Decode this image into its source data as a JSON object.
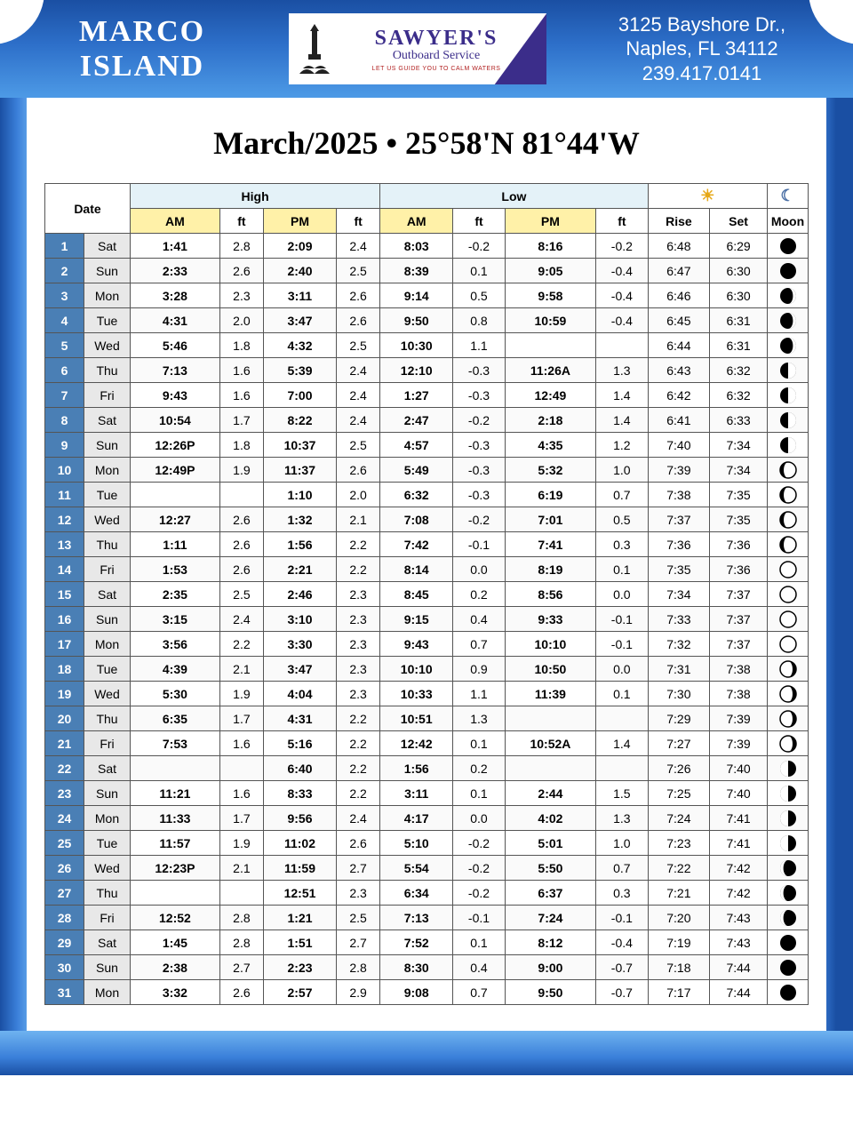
{
  "header": {
    "location": "MARCO\nISLAND",
    "sponsor": {
      "name": "SAWYER'S",
      "sub": "Outboard Service",
      "tag": "LET US GUIDE YOU TO CALM WATERS"
    },
    "address": {
      "line1": "3125 Bayshore Dr.,",
      "line2": "Naples, FL 34112",
      "phone": "239.417.0141"
    }
  },
  "title": "March/2025 • 25°58'N 81°44'W",
  "table": {
    "group_headers": {
      "date": "Date",
      "high": "High",
      "low": "Low",
      "sun": "☀",
      "moon": "☾"
    },
    "sub_headers": {
      "am": "AM",
      "ft": "ft",
      "pm": "PM",
      "rise": "Rise",
      "set": "Set",
      "moon": "Moon"
    },
    "col_styles": {
      "day_num_bg": "#4a7fb5",
      "day_num_color": "#ffffff",
      "yellow_bg": "#fff1a8",
      "group_bg": "#e4f2f8",
      "border_color": "#555555"
    },
    "moon_phases": {
      "new": {
        "fill": "full-black"
      },
      "wax_cres": {
        "fill": "right-sliver-white"
      },
      "first_q": {
        "fill": "right-half-white"
      },
      "wax_gib": {
        "fill": "right-most-white"
      },
      "full": {
        "fill": "white-outline"
      },
      "wan_gib": {
        "fill": "left-most-white"
      },
      "last_q": {
        "fill": "left-half-white"
      },
      "wan_cres": {
        "fill": "left-sliver-white"
      }
    },
    "rows": [
      {
        "d": 1,
        "dow": "Sat",
        "ham": "1:41",
        "hamft": "2.8",
        "hpm": "2:09",
        "hpmft": "2.4",
        "lam": "8:03",
        "lamft": "-0.2",
        "lpm": "8:16",
        "lpmft": "-0.2",
        "rise": "6:48",
        "set": "6:29",
        "moon": "new"
      },
      {
        "d": 2,
        "dow": "Sun",
        "ham": "2:33",
        "hamft": "2.6",
        "hpm": "2:40",
        "hpmft": "2.5",
        "lam": "8:39",
        "lamft": "0.1",
        "lpm": "9:05",
        "lpmft": "-0.4",
        "rise": "6:47",
        "set": "6:30",
        "moon": "new"
      },
      {
        "d": 3,
        "dow": "Mon",
        "ham": "3:28",
        "hamft": "2.3",
        "hpm": "3:11",
        "hpmft": "2.6",
        "lam": "9:14",
        "lamft": "0.5",
        "lpm": "9:58",
        "lpmft": "-0.4",
        "rise": "6:46",
        "set": "6:30",
        "moon": "wax_cres"
      },
      {
        "d": 4,
        "dow": "Tue",
        "ham": "4:31",
        "hamft": "2.0",
        "hpm": "3:47",
        "hpmft": "2.6",
        "lam": "9:50",
        "lamft": "0.8",
        "lpm": "10:59",
        "lpmft": "-0.4",
        "rise": "6:45",
        "set": "6:31",
        "moon": "wax_cres"
      },
      {
        "d": 5,
        "dow": "Wed",
        "ham": "5:46",
        "hamft": "1.8",
        "hpm": "4:32",
        "hpmft": "2.5",
        "lam": "10:30",
        "lamft": "1.1",
        "lpm": "",
        "lpmft": "",
        "rise": "6:44",
        "set": "6:31",
        "moon": "wax_cres"
      },
      {
        "d": 6,
        "dow": "Thu",
        "ham": "7:13",
        "hamft": "1.6",
        "hpm": "5:39",
        "hpmft": "2.4",
        "lam": "12:10",
        "lamft": "-0.3",
        "lpm": "11:26A",
        "lpmft": "1.3",
        "rise": "6:43",
        "set": "6:32",
        "moon": "first_q"
      },
      {
        "d": 7,
        "dow": "Fri",
        "ham": "9:43",
        "hamft": "1.6",
        "hpm": "7:00",
        "hpmft": "2.4",
        "lam": "1:27",
        "lamft": "-0.3",
        "lpm": "12:49",
        "lpmft": "1.4",
        "rise": "6:42",
        "set": "6:32",
        "moon": "first_q"
      },
      {
        "d": 8,
        "dow": "Sat",
        "ham": "10:54",
        "hamft": "1.7",
        "hpm": "8:22",
        "hpmft": "2.4",
        "lam": "2:47",
        "lamft": "-0.2",
        "lpm": "2:18",
        "lpmft": "1.4",
        "rise": "6:41",
        "set": "6:33",
        "moon": "first_q"
      },
      {
        "d": 9,
        "dow": "Sun",
        "ham": "12:26P",
        "hamft": "1.8",
        "hpm": "10:37",
        "hpmft": "2.5",
        "lam": "4:57",
        "lamft": "-0.3",
        "lpm": "4:35",
        "lpmft": "1.2",
        "rise": "7:40",
        "set": "7:34",
        "moon": "first_q"
      },
      {
        "d": 10,
        "dow": "Mon",
        "ham": "12:49P",
        "hamft": "1.9",
        "hpm": "11:37",
        "hpmft": "2.6",
        "lam": "5:49",
        "lamft": "-0.3",
        "lpm": "5:32",
        "lpmft": "1.0",
        "rise": "7:39",
        "set": "7:34",
        "moon": "wax_gib"
      },
      {
        "d": 11,
        "dow": "Tue",
        "ham": "",
        "hamft": "",
        "hpm": "1:10",
        "hpmft": "2.0",
        "lam": "6:32",
        "lamft": "-0.3",
        "lpm": "6:19",
        "lpmft": "0.7",
        "rise": "7:38",
        "set": "7:35",
        "moon": "wax_gib"
      },
      {
        "d": 12,
        "dow": "Wed",
        "ham": "12:27",
        "hamft": "2.6",
        "hpm": "1:32",
        "hpmft": "2.1",
        "lam": "7:08",
        "lamft": "-0.2",
        "lpm": "7:01",
        "lpmft": "0.5",
        "rise": "7:37",
        "set": "7:35",
        "moon": "wax_gib"
      },
      {
        "d": 13,
        "dow": "Thu",
        "ham": "1:11",
        "hamft": "2.6",
        "hpm": "1:56",
        "hpmft": "2.2",
        "lam": "7:42",
        "lamft": "-0.1",
        "lpm": "7:41",
        "lpmft": "0.3",
        "rise": "7:36",
        "set": "7:36",
        "moon": "wax_gib"
      },
      {
        "d": 14,
        "dow": "Fri",
        "ham": "1:53",
        "hamft": "2.6",
        "hpm": "2:21",
        "hpmft": "2.2",
        "lam": "8:14",
        "lamft": "0.0",
        "lpm": "8:19",
        "lpmft": "0.1",
        "rise": "7:35",
        "set": "7:36",
        "moon": "full"
      },
      {
        "d": 15,
        "dow": "Sat",
        "ham": "2:35",
        "hamft": "2.5",
        "hpm": "2:46",
        "hpmft": "2.3",
        "lam": "8:45",
        "lamft": "0.2",
        "lpm": "8:56",
        "lpmft": "0.0",
        "rise": "7:34",
        "set": "7:37",
        "moon": "full"
      },
      {
        "d": 16,
        "dow": "Sun",
        "ham": "3:15",
        "hamft": "2.4",
        "hpm": "3:10",
        "hpmft": "2.3",
        "lam": "9:15",
        "lamft": "0.4",
        "lpm": "9:33",
        "lpmft": "-0.1",
        "rise": "7:33",
        "set": "7:37",
        "moon": "full"
      },
      {
        "d": 17,
        "dow": "Mon",
        "ham": "3:56",
        "hamft": "2.2",
        "hpm": "3:30",
        "hpmft": "2.3",
        "lam": "9:43",
        "lamft": "0.7",
        "lpm": "10:10",
        "lpmft": "-0.1",
        "rise": "7:32",
        "set": "7:37",
        "moon": "full"
      },
      {
        "d": 18,
        "dow": "Tue",
        "ham": "4:39",
        "hamft": "2.1",
        "hpm": "3:47",
        "hpmft": "2.3",
        "lam": "10:10",
        "lamft": "0.9",
        "lpm": "10:50",
        "lpmft": "0.0",
        "rise": "7:31",
        "set": "7:38",
        "moon": "wan_gib"
      },
      {
        "d": 19,
        "dow": "Wed",
        "ham": "5:30",
        "hamft": "1.9",
        "hpm": "4:04",
        "hpmft": "2.3",
        "lam": "10:33",
        "lamft": "1.1",
        "lpm": "11:39",
        "lpmft": "0.1",
        "rise": "7:30",
        "set": "7:38",
        "moon": "wan_gib"
      },
      {
        "d": 20,
        "dow": "Thu",
        "ham": "6:35",
        "hamft": "1.7",
        "hpm": "4:31",
        "hpmft": "2.2",
        "lam": "10:51",
        "lamft": "1.3",
        "lpm": "",
        "lpmft": "",
        "rise": "7:29",
        "set": "7:39",
        "moon": "wan_gib"
      },
      {
        "d": 21,
        "dow": "Fri",
        "ham": "7:53",
        "hamft": "1.6",
        "hpm": "5:16",
        "hpmft": "2.2",
        "lam": "12:42",
        "lamft": "0.1",
        "lpm": "10:52A",
        "lpmft": "1.4",
        "rise": "7:27",
        "set": "7:39",
        "moon": "wan_gib"
      },
      {
        "d": 22,
        "dow": "Sat",
        "ham": "",
        "hamft": "",
        "hpm": "6:40",
        "hpmft": "2.2",
        "lam": "1:56",
        "lamft": "0.2",
        "lpm": "",
        "lpmft": "",
        "rise": "7:26",
        "set": "7:40",
        "moon": "last_q"
      },
      {
        "d": 23,
        "dow": "Sun",
        "ham": "11:21",
        "hamft": "1.6",
        "hpm": "8:33",
        "hpmft": "2.2",
        "lam": "3:11",
        "lamft": "0.1",
        "lpm": "2:44",
        "lpmft": "1.5",
        "rise": "7:25",
        "set": "7:40",
        "moon": "last_q"
      },
      {
        "d": 24,
        "dow": "Mon",
        "ham": "11:33",
        "hamft": "1.7",
        "hpm": "9:56",
        "hpmft": "2.4",
        "lam": "4:17",
        "lamft": "0.0",
        "lpm": "4:02",
        "lpmft": "1.3",
        "rise": "7:24",
        "set": "7:41",
        "moon": "last_q"
      },
      {
        "d": 25,
        "dow": "Tue",
        "ham": "11:57",
        "hamft": "1.9",
        "hpm": "11:02",
        "hpmft": "2.6",
        "lam": "5:10",
        "lamft": "-0.2",
        "lpm": "5:01",
        "lpmft": "1.0",
        "rise": "7:23",
        "set": "7:41",
        "moon": "last_q"
      },
      {
        "d": 26,
        "dow": "Wed",
        "ham": "12:23P",
        "hamft": "2.1",
        "hpm": "11:59",
        "hpmft": "2.7",
        "lam": "5:54",
        "lamft": "-0.2",
        "lpm": "5:50",
        "lpmft": "0.7",
        "rise": "7:22",
        "set": "7:42",
        "moon": "wan_cres"
      },
      {
        "d": 27,
        "dow": "Thu",
        "ham": "",
        "hamft": "",
        "hpm": "12:51",
        "hpmft": "2.3",
        "lam": "6:34",
        "lamft": "-0.2",
        "lpm": "6:37",
        "lpmft": "0.3",
        "rise": "7:21",
        "set": "7:42",
        "moon": "wan_cres"
      },
      {
        "d": 28,
        "dow": "Fri",
        "ham": "12:52",
        "hamft": "2.8",
        "hpm": "1:21",
        "hpmft": "2.5",
        "lam": "7:13",
        "lamft": "-0.1",
        "lpm": "7:24",
        "lpmft": "-0.1",
        "rise": "7:20",
        "set": "7:43",
        "moon": "wan_cres"
      },
      {
        "d": 29,
        "dow": "Sat",
        "ham": "1:45",
        "hamft": "2.8",
        "hpm": "1:51",
        "hpmft": "2.7",
        "lam": "7:52",
        "lamft": "0.1",
        "lpm": "8:12",
        "lpmft": "-0.4",
        "rise": "7:19",
        "set": "7:43",
        "moon": "new"
      },
      {
        "d": 30,
        "dow": "Sun",
        "ham": "2:38",
        "hamft": "2.7",
        "hpm": "2:23",
        "hpmft": "2.8",
        "lam": "8:30",
        "lamft": "0.4",
        "lpm": "9:00",
        "lpmft": "-0.7",
        "rise": "7:18",
        "set": "7:44",
        "moon": "new"
      },
      {
        "d": 31,
        "dow": "Mon",
        "ham": "3:32",
        "hamft": "2.6",
        "hpm": "2:57",
        "hpmft": "2.9",
        "lam": "9:08",
        "lamft": "0.7",
        "lpm": "9:50",
        "lpmft": "-0.7",
        "rise": "7:17",
        "set": "7:44",
        "moon": "new"
      }
    ]
  }
}
